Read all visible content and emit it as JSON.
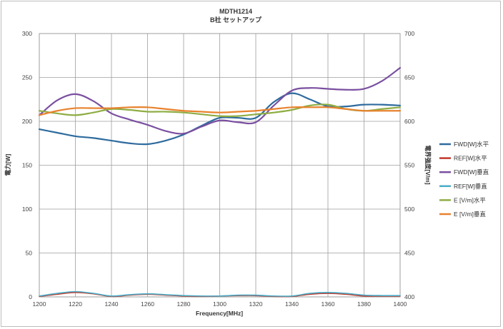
{
  "chart_data": {
    "type": "line",
    "title": "MDTH1214",
    "subtitle": "B社 セットアップ",
    "xlabel": "Frequency[MHz]",
    "ylabel_left": "電力[W]",
    "ylabel_right": "電界強度[V/m]",
    "xlim": [
      1200,
      1400
    ],
    "ylim_left": [
      0,
      300
    ],
    "ylim_right": [
      400,
      700
    ],
    "x_ticks": [
      "1200",
      "1220",
      "1240",
      "1260",
      "1280",
      "1300",
      "1320",
      "1340",
      "1360",
      "1380",
      "1400"
    ],
    "y_left_ticks": [
      "0",
      "50",
      "100",
      "150",
      "200",
      "250",
      "300"
    ],
    "y_right_ticks": [
      "400",
      "450",
      "500",
      "550",
      "600",
      "650",
      "700"
    ],
    "grid": true,
    "legend_position": "right",
    "x": [
      1200,
      1210,
      1220,
      1230,
      1240,
      1250,
      1260,
      1270,
      1280,
      1290,
      1300,
      1310,
      1320,
      1330,
      1340,
      1350,
      1360,
      1370,
      1380,
      1390,
      1400
    ],
    "series": [
      {
        "name": "FWD[W]水平",
        "axis": "left",
        "color": "#2e6b9e",
        "values": [
          191,
          187,
          183,
          181,
          178,
          175,
          174,
          178,
          185,
          195,
          204,
          204,
          204,
          222,
          232,
          225,
          217,
          217,
          219,
          219,
          218
        ]
      },
      {
        "name": "REF[W]水平",
        "axis": "left",
        "color": "#c0392b",
        "values": [
          0.5,
          3,
          5,
          3.5,
          0.5,
          2,
          3,
          2,
          1,
          0.5,
          1,
          1.5,
          1.5,
          0.5,
          0.5,
          3,
          4,
          3,
          1,
          1,
          1
        ]
      },
      {
        "name": "FWD[W]垂直",
        "axis": "left",
        "color": "#7a4fa0",
        "values": [
          207,
          224,
          231,
          223,
          209,
          202,
          196,
          189,
          186,
          194,
          201,
          199,
          199,
          218,
          235,
          238,
          237,
          236,
          237,
          246,
          261
        ]
      },
      {
        "name": "REF[W]垂直",
        "axis": "left",
        "color": "#4bacc6",
        "values": [
          1,
          4,
          6,
          4,
          1,
          2.5,
          3.5,
          2.5,
          1.5,
          1,
          1,
          2,
          2,
          1,
          1,
          4,
          5,
          4,
          2,
          1.5,
          1.5
        ]
      },
      {
        "name": "E [V/m]水平",
        "axis": "right",
        "color": "#8fad44",
        "values": [
          612,
          609,
          607,
          610,
          614,
          613,
          611,
          611,
          610,
          608,
          606,
          606,
          608,
          610,
          613,
          618,
          619,
          614,
          612,
          614,
          616
        ]
      },
      {
        "name": "E [V/m]垂直",
        "axis": "right",
        "color": "#e8822e",
        "values": [
          607,
          612,
          615,
          615,
          615,
          616,
          616,
          614,
          612,
          611,
          610,
          611,
          612,
          614,
          616,
          616,
          616,
          614,
          612,
          612,
          612
        ]
      }
    ]
  }
}
